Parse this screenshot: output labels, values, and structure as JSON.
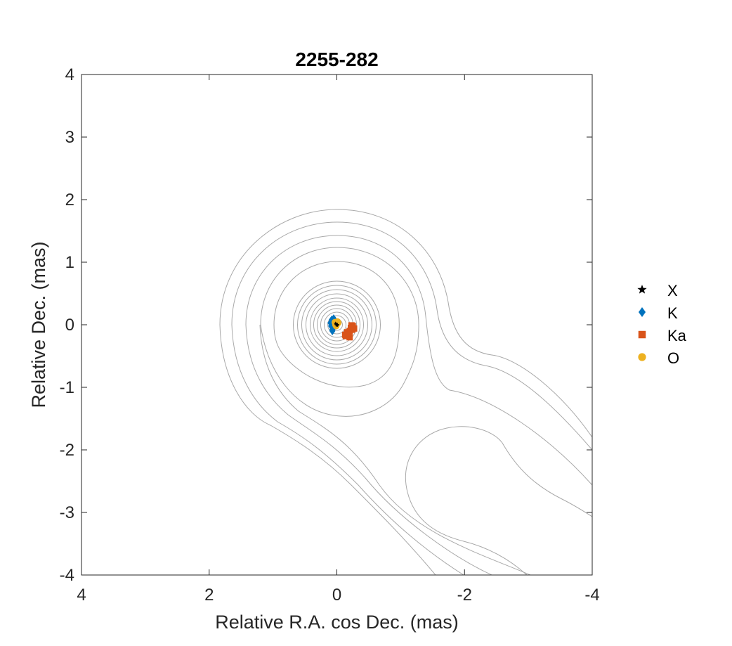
{
  "chart_data": {
    "type": "scatter",
    "title": "2255-282",
    "xlabel": "Relative R.A. cos Dec. (mas)",
    "ylabel": "Relative Dec. (mas)",
    "xlim": [
      4,
      -4
    ],
    "ylim": [
      -4,
      4
    ],
    "x_reversed": true,
    "xticks": [
      4,
      2,
      0,
      -2,
      -4
    ],
    "xtick_labels": [
      "4",
      "2",
      "0",
      "-2",
      "-4"
    ],
    "yticks": [
      -4,
      -3,
      -2,
      -1,
      0,
      1,
      2,
      3,
      4
    ],
    "ytick_labels": [
      "-4",
      "-3",
      "-2",
      "-1",
      "0",
      "1",
      "2",
      "3",
      "4"
    ],
    "grid": false,
    "legend_position": "right",
    "background": "contour map (gray lines)",
    "series": [
      {
        "name": "X",
        "marker": "star",
        "color": "#000000",
        "x": [
          0.01,
          0.0,
          0.02,
          -0.01
        ],
        "y": [
          0.01,
          -0.01,
          0.02,
          0.0
        ]
      },
      {
        "name": "K",
        "marker": "diamond",
        "color": "#0072BD",
        "x": [
          0.08,
          0.07,
          0.06,
          0.09,
          0.05,
          0.07,
          0.08,
          0.06,
          0.04,
          0.1,
          0.07,
          0.05
        ],
        "y": [
          0.05,
          0.0,
          -0.05,
          -0.02,
          0.02,
          -0.08,
          0.08,
          0.07,
          -0.03,
          0.03,
          -0.1,
          0.1
        ]
      },
      {
        "name": "Ka",
        "marker": "square",
        "color": "#D95319",
        "x": [
          -0.2,
          -0.22,
          -0.18,
          -0.24,
          -0.16,
          -0.25,
          -0.14,
          -0.2,
          -0.23,
          -0.17,
          -0.27,
          -0.13
        ],
        "y": [
          -0.1,
          -0.05,
          -0.15,
          -0.08,
          -0.12,
          -0.02,
          -0.18,
          -0.2,
          -0.01,
          -0.14,
          -0.06,
          -0.16
        ]
      },
      {
        "name": "O",
        "marker": "circle",
        "color": "#EDB120",
        "x": [
          0.0,
          0.02,
          -0.02,
          0.01,
          -0.01,
          0.03
        ],
        "y": [
          0.02,
          0.0,
          0.03,
          -0.02,
          0.05,
          0.04
        ]
      }
    ]
  }
}
